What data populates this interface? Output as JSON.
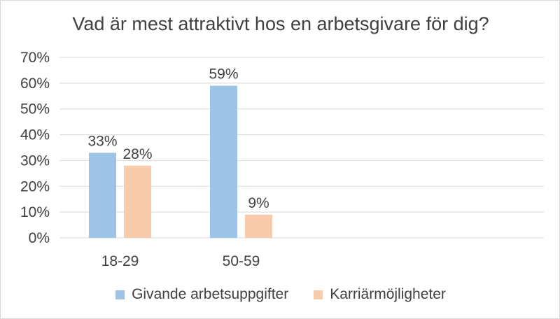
{
  "chart_data": {
    "type": "bar",
    "title": "Vad är mest attraktivt hos en arbetsgivare för dig?",
    "categories": [
      "18-29",
      "50-59"
    ],
    "series": [
      {
        "name": "Givande arbetsuppgifter",
        "values": [
          33,
          59
        ],
        "labels": [
          "33%",
          "59%"
        ],
        "color": "#9dc3e6"
      },
      {
        "name": "Karriärmöjligheter",
        "values": [
          28,
          9
        ],
        "labels": [
          "28%",
          "9%"
        ],
        "color": "#f8cbad"
      }
    ],
    "ylim": [
      0,
      70
    ],
    "yticks": [
      0,
      10,
      20,
      30,
      40,
      50,
      60,
      70
    ],
    "ytick_labels": [
      "0%",
      "10%",
      "20%",
      "30%",
      "40%",
      "50%",
      "60%",
      "70%"
    ],
    "xlabel": "",
    "ylabel": "",
    "grid": true,
    "legend_position": "bottom",
    "gridline_color": "#d9d9d9"
  }
}
